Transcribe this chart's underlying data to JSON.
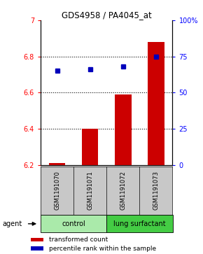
{
  "title": "GDS4958 / PA4045_at",
  "samples": [
    "GSM1191070",
    "GSM1191071",
    "GSM1191072",
    "GSM1191073"
  ],
  "transformed_count": [
    6.21,
    6.4,
    6.59,
    6.88
  ],
  "percentile_rank": [
    65,
    66,
    68,
    75
  ],
  "ylim_left": [
    6.2,
    7.0
  ],
  "ylim_right": [
    0,
    100
  ],
  "yticks_left": [
    6.2,
    6.4,
    6.6,
    6.8,
    7.0
  ],
  "ytick_labels_left": [
    "6.2",
    "6.4",
    "6.6",
    "6.8",
    "7"
  ],
  "yticks_right": [
    0,
    25,
    50,
    75,
    100
  ],
  "ytick_labels_right": [
    "0",
    "25",
    "50",
    "75",
    "100%"
  ],
  "bar_color": "#cc0000",
  "dot_color": "#0000bb",
  "bar_base": 6.2,
  "background_color": "#ffffff",
  "label_area_color": "#c8c8c8",
  "control_color": "#aaeaaa",
  "surfactant_color": "#44cc44",
  "agent_label": "agent",
  "legend_bar_label": "transformed count",
  "legend_dot_label": "percentile rank within the sample"
}
